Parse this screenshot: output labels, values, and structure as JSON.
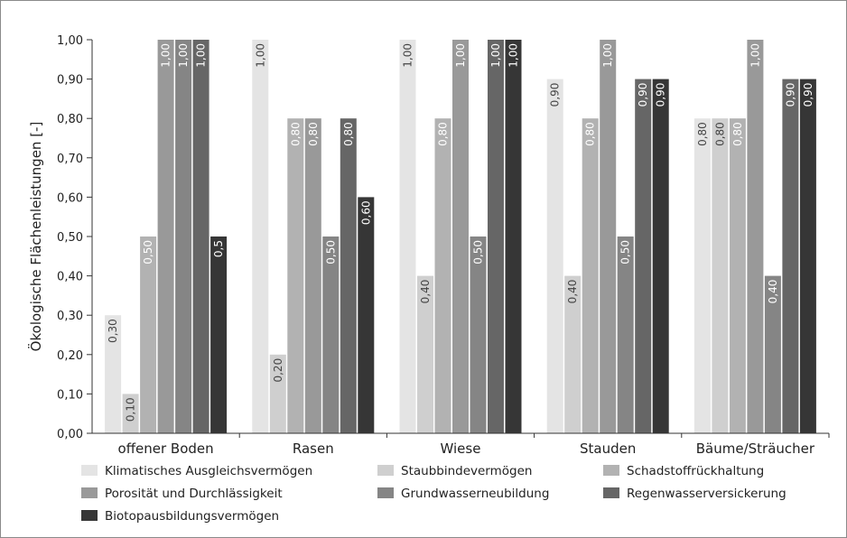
{
  "chart_data": {
    "type": "bar",
    "ylabel": "Ökologische Flächenleistungen [-]",
    "ylim": [
      0,
      1
    ],
    "ytick_labels": [
      "0,00",
      "0,10",
      "0,20",
      "0,30",
      "0,40",
      "0,50",
      "0,60",
      "0,70",
      "0,80",
      "0,90",
      "1,00"
    ],
    "categories": [
      "offener Boden",
      "Rasen",
      "Wiese",
      "Stauden",
      "Bäume/Sträucher"
    ],
    "series": [
      {
        "name": "Klimatisches Ausgleichsvermögen",
        "color": "#e4e4e4",
        "values": [
          0.3,
          1.0,
          1.0,
          0.9,
          0.8
        ],
        "labels": [
          "0,30",
          "1,00",
          "1,00",
          "0,90",
          "0,80"
        ]
      },
      {
        "name": "Staubbindevermögen",
        "color": "#cfcfcf",
        "values": [
          0.1,
          0.2,
          0.4,
          0.4,
          0.8
        ],
        "labels": [
          "0,10",
          "0,20",
          "0,40",
          "0,40",
          "0,80"
        ]
      },
      {
        "name": "Schadstoffrückhaltung",
        "color": "#b2b2b2",
        "values": [
          0.5,
          0.8,
          0.8,
          0.8,
          0.8
        ],
        "labels": [
          "0,50",
          "0,80",
          "0,80",
          "0,80",
          "0,80"
        ]
      },
      {
        "name": "Porosität und Durchlässigkeit",
        "color": "#999999",
        "values": [
          1.0,
          0.8,
          1.0,
          1.0,
          1.0
        ],
        "labels": [
          "1,00",
          "0,80",
          "1,00",
          "1,00",
          "1,00"
        ]
      },
      {
        "name": "Grundwasserneubildung",
        "color": "#858585",
        "values": [
          1.0,
          0.5,
          0.5,
          0.5,
          0.4
        ],
        "labels": [
          "1,00",
          "0,50",
          "0,50",
          "0,50",
          "0,40"
        ]
      },
      {
        "name": "Regenwasserversickerung",
        "color": "#666666",
        "values": [
          1.0,
          0.8,
          1.0,
          0.9,
          0.9
        ],
        "labels": [
          "1,00",
          "0,80",
          "1,00",
          "0,90",
          "0,90"
        ]
      },
      {
        "name": "Biotopausbildungsvermögen",
        "color": "#363636",
        "values": [
          0.5,
          0.6,
          1.0,
          0.9,
          0.9
        ],
        "labels": [
          "0,5",
          "0,60",
          "1,00",
          "0,90",
          "0,90"
        ]
      }
    ],
    "grid": false,
    "legend": "bottom"
  }
}
